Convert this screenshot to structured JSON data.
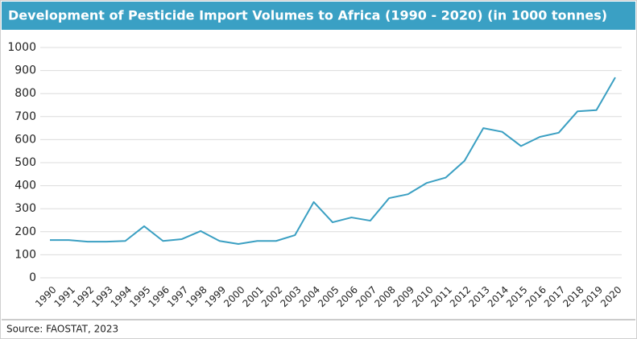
{
  "chart_data": {
    "type": "line",
    "title": "Development of Pesticide Import Volumes to Africa (1990 - 2020) (in 1000 tonnes)",
    "source": "Source: FAOSTAT, 2023",
    "x": [
      1990,
      1991,
      1992,
      1993,
      1994,
      1995,
      1996,
      1997,
      1998,
      1999,
      2000,
      2001,
      2002,
      2003,
      2004,
      2005,
      2006,
      2007,
      2008,
      2009,
      2010,
      2011,
      2012,
      2013,
      2014,
      2015,
      2016,
      2017,
      2018,
      2019,
      2020
    ],
    "xlim": [
      1990,
      2020
    ],
    "series": [
      {
        "color": "#3a9fc2",
        "values": [
          164,
          164,
          157,
          157,
          160,
          224,
          160,
          168,
          203,
          160,
          147,
          160,
          160,
          185,
          329,
          241,
          262,
          248,
          346,
          363,
          412,
          435,
          508,
          650,
          634,
          572,
          612,
          630,
          723,
          728,
          870
        ]
      }
    ],
    "ylim": [
      0,
      1000
    ],
    "yticks": [
      0,
      100,
      200,
      300,
      400,
      500,
      600,
      700,
      800,
      900,
      1000
    ],
    "grid": true
  }
}
